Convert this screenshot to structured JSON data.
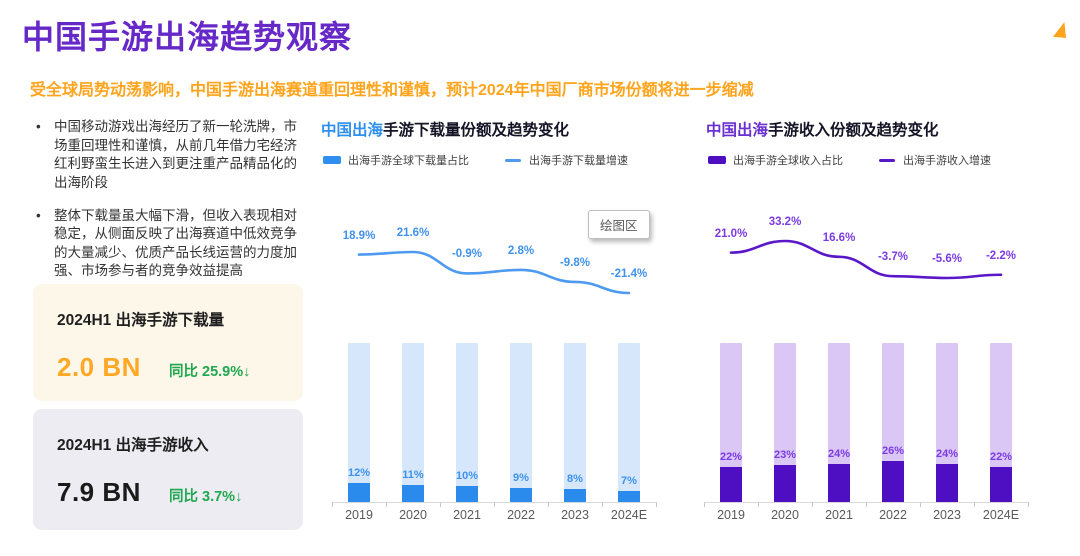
{
  "page": {
    "title": "中国手游出海趋势观察",
    "subtitle": "受全球局势动荡影响，中国手游出海赛道重回理性和谨慎，预计2024年中国厂商市场份额将进一步缩减"
  },
  "bullets": [
    "中国移动游戏出海经历了新一轮洗牌，市场重回理性和谨慎，从前几年借力宅经济红利野蛮生长进入到更注重产品精品化的出海阶段",
    "整体下载量虽大幅下滑，但收入表现相对稳定，从侧面反映了出海赛道中低效竞争的大量减少、优质产品长线运营的力度加强、市场参与者的竞争效益提高"
  ],
  "stat_cards": [
    {
      "title": "2024H1 出海手游下载量",
      "value": "2.0 BN",
      "yoy": "同比 25.9%↓"
    },
    {
      "title": "2024H1 出海手游收入",
      "value": "7.9 BN",
      "yoy": "同比 3.7%↓"
    }
  ],
  "tooltip": {
    "label": "绘图区"
  },
  "colors": {
    "title_purple": "#6629C8",
    "subtitle_orange": "#FFA41C",
    "value_orange": "#FFA826",
    "green": "#1FA84F",
    "blue_accent": "#2E8FEE",
    "blue_bar_light": "#D6E7FB",
    "blue_bar_fill": "#2B8BED",
    "blue_line": "#4D9AF0",
    "blue_label": "#3E92ED",
    "purple_accent": "#6A2FD0",
    "purple_bar_light": "#DBC7F6",
    "purple_bar_fill": "#4E0EC2",
    "purple_line": "#5A17C9",
    "purple_label": "#7B3BE2"
  },
  "chart_data": [
    {
      "type": "bar",
      "title_highlight": "中国出海",
      "title_rest": "手游下载量份额及趋势变化",
      "legend": [
        "出海手游全球下载量占比",
        "出海手游下载量增速"
      ],
      "categories": [
        "2019",
        "2020",
        "2021",
        "2022",
        "2023",
        "2024E"
      ],
      "series": [
        {
          "name": "出海手游全球下载量占比",
          "type": "bar",
          "unit": "%",
          "values": [
            12,
            11,
            10,
            9,
            8,
            7
          ],
          "labels": [
            "12%",
            "11%",
            "10%",
            "9%",
            "8%",
            "7%"
          ]
        },
        {
          "name": "出海手游下载量增速",
          "type": "line",
          "unit": "%",
          "values": [
            18.9,
            21.6,
            -0.9,
            2.8,
            -9.8,
            -21.4
          ],
          "labels": [
            "18.9%",
            "21.6%",
            "-0.9%",
            "2.8%",
            "-9.8%",
            "-21.4%"
          ]
        }
      ],
      "ylim_bar": [
        0,
        100
      ],
      "grid": false,
      "legend_position": "top"
    },
    {
      "type": "bar",
      "title_highlight": "中国出海",
      "title_rest": "手游收入份额及趋势变化",
      "legend": [
        "出海手游全球收入占比",
        "出海手游收入增速"
      ],
      "categories": [
        "2019",
        "2020",
        "2021",
        "2022",
        "2023",
        "2024E"
      ],
      "series": [
        {
          "name": "出海手游全球收入占比",
          "type": "bar",
          "unit": "%",
          "values": [
            22,
            23,
            24,
            26,
            24,
            22
          ],
          "labels": [
            "22%",
            "23%",
            "24%",
            "26%",
            "24%",
            "22%"
          ]
        },
        {
          "name": "出海手游收入增速",
          "type": "line",
          "unit": "%",
          "values": [
            21.0,
            33.2,
            16.6,
            -3.7,
            -5.6,
            -2.2
          ],
          "labels": [
            "21.0%",
            "33.2%",
            "16.6%",
            "-3.7%",
            "-5.6%",
            "-2.2%"
          ]
        }
      ],
      "ylim_bar": [
        0,
        100
      ],
      "grid": false,
      "legend_position": "top"
    }
  ]
}
